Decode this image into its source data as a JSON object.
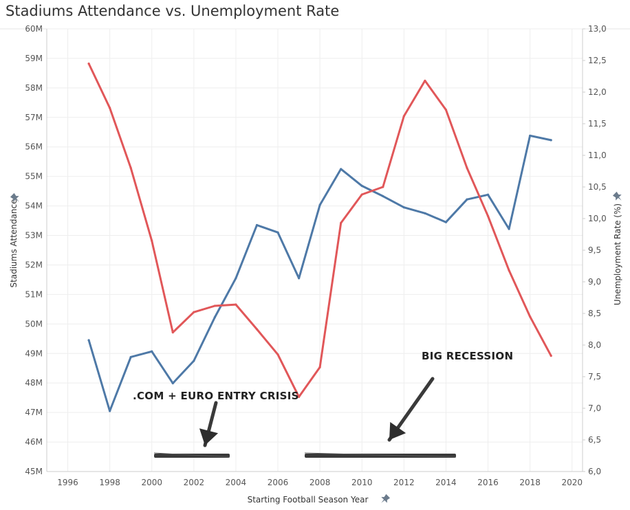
{
  "chart_data": {
    "type": "line",
    "title": "Stadiums Attendance vs. Unemployment Rate",
    "xlabel": "Starting Football Season Year",
    "ylabel_left": "Stadiums Attendance",
    "ylabel_right": "Unemployment Rate (%)",
    "x_ticks": [
      "1996",
      "1998",
      "2000",
      "2002",
      "2004",
      "2006",
      "2008",
      "2010",
      "2012",
      "2014",
      "2016",
      "2018",
      "2020"
    ],
    "y_left_ticks": [
      "45M",
      "46M",
      "47M",
      "48M",
      "49M",
      "50M",
      "51M",
      "52M",
      "53M",
      "54M",
      "55M",
      "56M",
      "57M",
      "58M",
      "59M",
      "60M"
    ],
    "y_right_ticks": [
      "6,0",
      "6,5",
      "7,0",
      "7,5",
      "8,0",
      "8,5",
      "9,0",
      "9,5",
      "10,0",
      "10,5",
      "11,0",
      "11,5",
      "12,0",
      "12,5",
      "13,0"
    ],
    "xlim": [
      1995,
      2020.5
    ],
    "ylim_left": [
      45,
      60
    ],
    "ylim_right": [
      6.0,
      13.0
    ],
    "grid": true,
    "series": [
      {
        "color": "#4e79a7",
        "axis": "left",
        "x": [
          1997,
          1998,
          1999,
          2000,
          2001,
          2002,
          2003,
          2004,
          2005,
          2006,
          2007,
          2008,
          2009,
          2010,
          2011,
          2012,
          2013,
          2014,
          2015,
          2016,
          2017,
          2018,
          2019
        ],
        "values": [
          49.45,
          47.05,
          48.88,
          49.07,
          47.99,
          48.75,
          50.23,
          51.55,
          53.35,
          53.1,
          51.55,
          54.03,
          55.25,
          54.68,
          54.33,
          53.95,
          53.75,
          53.45,
          54.22,
          54.38,
          53.22,
          56.38,
          56.23
        ]
      },
      {
        "color": "#e15759",
        "axis": "right",
        "x": [
          1997,
          1998,
          1999,
          2000,
          2001,
          2002,
          2003,
          2004,
          2005,
          2006,
          2007,
          2008,
          2009,
          2010,
          2011,
          2012,
          2013,
          2014,
          2015,
          2016,
          2017,
          2018,
          2019
        ],
        "values": [
          12.45,
          11.75,
          10.8,
          9.65,
          8.2,
          8.52,
          8.62,
          8.64,
          8.25,
          7.85,
          7.18,
          7.65,
          9.93,
          10.38,
          10.5,
          11.62,
          12.18,
          11.72,
          10.8,
          10.04,
          9.18,
          8.45,
          7.83
        ]
      }
    ],
    "annotations": [
      {
        "text": ".COM + EURO ENTRY CRISIS"
      },
      {
        "text": "BIG RECESSION"
      }
    ]
  }
}
